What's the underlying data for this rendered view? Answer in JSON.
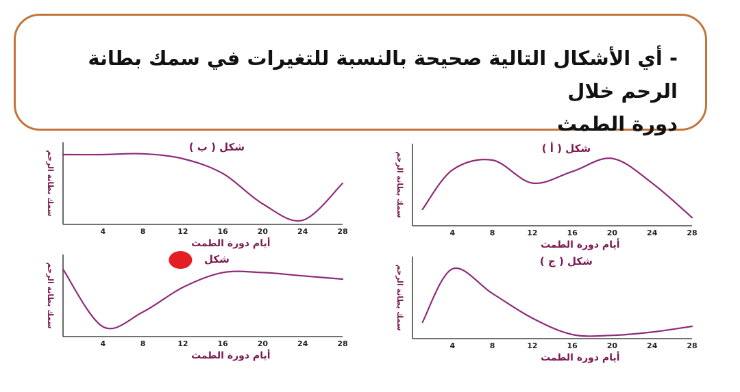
{
  "question": {
    "line1": "- أي الأشكال التالية صحيحة بالنسبة للتغيرات في سمك بطانة الرحم خلال",
    "line2": "دورة الطمث"
  },
  "colors": {
    "curve": "#8d2b78",
    "axis": "#444444",
    "border": "#c4743a",
    "marker": "#e31e24"
  },
  "chart_data": [
    {
      "id": "a",
      "type": "line",
      "title": "شكل ( أ )",
      "xlabel": "أيام دورة الطمث",
      "ylabel": "سمك بطانة الرحم",
      "x_ticks": [
        "4",
        "8",
        "12",
        "16",
        "20",
        "24",
        "28"
      ],
      "xlim": [
        0,
        28
      ],
      "ylim": [
        0,
        100
      ],
      "x": [
        1,
        4,
        8,
        12,
        16,
        20,
        24,
        28
      ],
      "values": [
        20,
        68,
        80,
        52,
        66,
        82,
        52,
        10
      ]
    },
    {
      "id": "b",
      "type": "line",
      "title": "شكل ( ب )",
      "xlabel": "أيام دورة الطمث",
      "ylabel": "سمك بطانة الرحم",
      "x_ticks": [
        "4",
        "8",
        "12",
        "16",
        "20",
        "24",
        "28"
      ],
      "xlim": [
        0,
        28
      ],
      "ylim": [
        0,
        100
      ],
      "x": [
        0,
        4,
        8,
        12,
        16,
        20,
        24,
        28
      ],
      "values": [
        85,
        85,
        86,
        80,
        62,
        25,
        5,
        50
      ]
    },
    {
      "id": "c",
      "type": "line",
      "title": "شكل ( ج )",
      "xlabel": "أيام دورة الطمث",
      "ylabel": "سمك بطانة الرحم",
      "x_ticks": [
        "4",
        "8",
        "12",
        "16",
        "20",
        "24",
        "28"
      ],
      "xlim": [
        0,
        28
      ],
      "ylim": [
        0,
        100
      ],
      "x": [
        1,
        4,
        8,
        12,
        16,
        20,
        24,
        28
      ],
      "values": [
        20,
        85,
        55,
        25,
        5,
        4,
        8,
        15
      ]
    },
    {
      "id": "d",
      "type": "line",
      "title": "شكل",
      "xlabel": "أيام دورة الطمث",
      "ylabel": "سمك بطانة الرحم",
      "x_ticks": [
        "4",
        "8",
        "12",
        "16",
        "20",
        "24",
        "28"
      ],
      "xlim": [
        0,
        28
      ],
      "ylim": [
        0,
        100
      ],
      "x": [
        0,
        4,
        8,
        12,
        16,
        20,
        24,
        28
      ],
      "values": [
        82,
        12,
        30,
        60,
        78,
        78,
        74,
        70
      ]
    }
  ]
}
